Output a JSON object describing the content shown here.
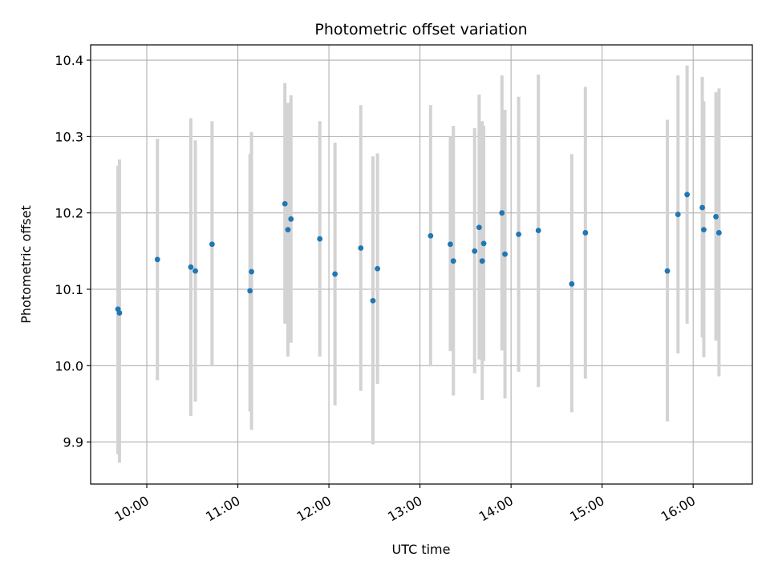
{
  "chart_data": {
    "type": "scatter",
    "title": "Photometric offset variation",
    "xlabel": "UTC time",
    "ylabel": "Photometric offset",
    "x_ticks": [
      "10:00",
      "11:00",
      "12:00",
      "13:00",
      "14:00",
      "15:00",
      "16:00"
    ],
    "y_ticks": [
      "9.9",
      "10.0",
      "10.1",
      "10.2",
      "10.3",
      "10.4"
    ],
    "xlim": [
      "09:23",
      "16:39"
    ],
    "ylim": [
      9.845,
      10.42
    ],
    "grid": true,
    "colors": {
      "point": "#1f77b4",
      "errorbar": "#d3d3d3",
      "grid": "#b0b0b0"
    },
    "series": [
      {
        "points": [
          {
            "x": "09:41",
            "y": 10.074,
            "err_low": 9.884,
            "err_high": 10.262
          },
          {
            "x": "09:42",
            "y": 10.069,
            "err_low": 9.873,
            "err_high": 10.27
          },
          {
            "x": "10:07",
            "y": 10.139,
            "err_low": 9.981,
            "err_high": 10.297
          },
          {
            "x": "10:29",
            "y": 10.129,
            "err_low": 9.934,
            "err_high": 10.324
          },
          {
            "x": "10:32",
            "y": 10.124,
            "err_low": 9.953,
            "err_high": 10.295
          },
          {
            "x": "10:43",
            "y": 10.159,
            "err_low": 9.999,
            "err_high": 10.32
          },
          {
            "x": "11:08",
            "y": 10.098,
            "err_low": 9.94,
            "err_high": 10.277
          },
          {
            "x": "11:09",
            "y": 10.123,
            "err_low": 9.916,
            "err_high": 10.306
          },
          {
            "x": "11:31",
            "y": 10.212,
            "err_low": 10.055,
            "err_high": 10.37
          },
          {
            "x": "11:33",
            "y": 10.178,
            "err_low": 10.012,
            "err_high": 10.344
          },
          {
            "x": "11:35",
            "y": 10.192,
            "err_low": 10.03,
            "err_high": 10.354
          },
          {
            "x": "11:54",
            "y": 10.166,
            "err_low": 10.012,
            "err_high": 10.32
          },
          {
            "x": "12:04",
            "y": 10.12,
            "err_low": 9.948,
            "err_high": 10.292
          },
          {
            "x": "12:21",
            "y": 10.154,
            "err_low": 9.967,
            "err_high": 10.341
          },
          {
            "x": "12:29",
            "y": 10.085,
            "err_low": 9.897,
            "err_high": 10.274
          },
          {
            "x": "12:32",
            "y": 10.127,
            "err_low": 9.976,
            "err_high": 10.278
          },
          {
            "x": "13:07",
            "y": 10.17,
            "err_low": 9.999,
            "err_high": 10.341
          },
          {
            "x": "13:20",
            "y": 10.159,
            "err_low": 10.019,
            "err_high": 10.3
          },
          {
            "x": "13:22",
            "y": 10.137,
            "err_low": 9.961,
            "err_high": 10.314
          },
          {
            "x": "13:36",
            "y": 10.15,
            "err_low": 9.99,
            "err_high": 10.311
          },
          {
            "x": "13:39",
            "y": 10.181,
            "err_low": 10.008,
            "err_high": 10.355
          },
          {
            "x": "13:41",
            "y": 10.137,
            "err_low": 9.955,
            "err_high": 10.32
          },
          {
            "x": "13:42",
            "y": 10.16,
            "err_low": 10.006,
            "err_high": 10.314
          },
          {
            "x": "13:54",
            "y": 10.2,
            "err_low": 10.02,
            "err_high": 10.38
          },
          {
            "x": "13:56",
            "y": 10.146,
            "err_low": 9.957,
            "err_high": 10.335
          },
          {
            "x": "14:05",
            "y": 10.172,
            "err_low": 9.992,
            "err_high": 10.352
          },
          {
            "x": "14:18",
            "y": 10.177,
            "err_low": 9.972,
            "err_high": 10.381
          },
          {
            "x": "14:40",
            "y": 10.107,
            "err_low": 9.939,
            "err_high": 10.277
          },
          {
            "x": "14:49",
            "y": 10.174,
            "err_low": 9.983,
            "err_high": 10.365
          },
          {
            "x": "15:43",
            "y": 10.124,
            "err_low": 9.927,
            "err_high": 10.322
          },
          {
            "x": "15:50",
            "y": 10.198,
            "err_low": 10.016,
            "err_high": 10.38
          },
          {
            "x": "15:56",
            "y": 10.224,
            "err_low": 10.055,
            "err_high": 10.393
          },
          {
            "x": "16:06",
            "y": 10.207,
            "err_low": 10.037,
            "err_high": 10.378
          },
          {
            "x": "16:07",
            "y": 10.178,
            "err_low": 10.011,
            "err_high": 10.346
          },
          {
            "x": "16:15",
            "y": 10.195,
            "err_low": 10.033,
            "err_high": 10.358
          },
          {
            "x": "16:17",
            "y": 10.174,
            "err_low": 9.986,
            "err_high": 10.363
          }
        ]
      }
    ]
  }
}
